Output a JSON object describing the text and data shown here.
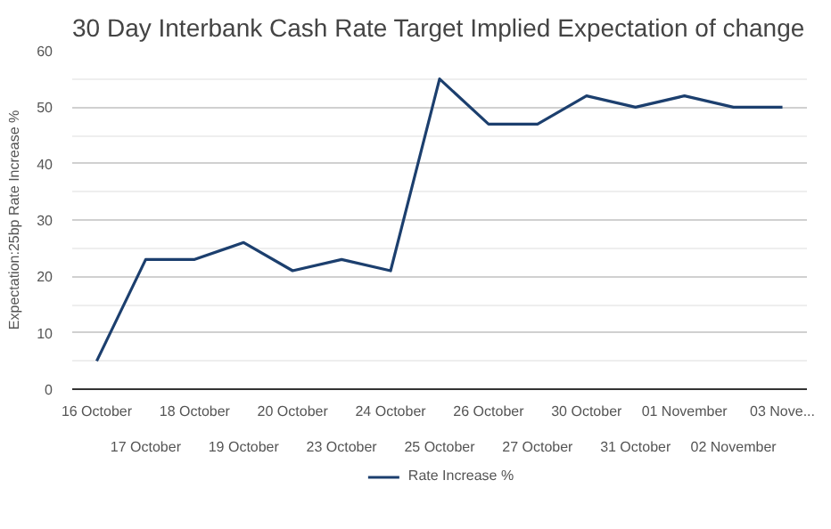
{
  "chart_data": {
    "type": "line",
    "title": "30 Day Interbank Cash Rate Target Implied Expectation of change",
    "ylabel": "Expectation:25bp Rate Increase %",
    "categories": [
      "16 October",
      "17 October",
      "18 October",
      "19 October",
      "20 October",
      "23 October",
      "24 October",
      "25 October",
      "26 October",
      "27 October",
      "30 October",
      "31 October",
      "01 November",
      "02 November",
      "03 Nove..."
    ],
    "series": [
      {
        "name": "Rate Increase %",
        "color": "#1c3f6e",
        "values": [
          5,
          23,
          23,
          26,
          21,
          23,
          21,
          55,
          47,
          47,
          52,
          50,
          52,
          50,
          50
        ]
      }
    ],
    "ylim": [
      0,
      60
    ],
    "yticks": [
      0,
      10,
      20,
      30,
      40,
      50,
      60
    ],
    "grid": "y",
    "legend": "bottom",
    "marker": "none",
    "line_style": "solid"
  }
}
